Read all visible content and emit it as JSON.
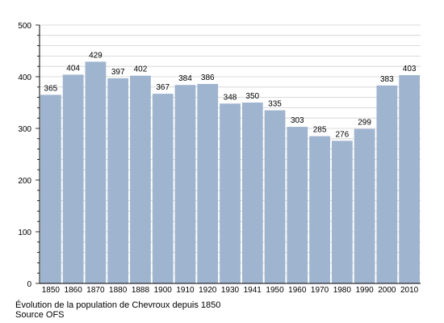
{
  "chart_data": {
    "type": "bar",
    "categories": [
      "1850",
      "1860",
      "1870",
      "1880",
      "1888",
      "1900",
      "1910",
      "1920",
      "1930",
      "1941",
      "1950",
      "1960",
      "1970",
      "1980",
      "1990",
      "2000",
      "2010"
    ],
    "values": [
      365,
      404,
      429,
      397,
      402,
      367,
      384,
      386,
      348,
      350,
      335,
      303,
      285,
      276,
      299,
      383,
      403
    ],
    "data_labels": [
      "365",
      "404",
      "429",
      "397",
      "402",
      "367",
      "384",
      "386",
      "348",
      "350",
      "335",
      "303",
      "285",
      "276",
      "299",
      "383",
      "403"
    ],
    "y_ticks": [
      "0",
      "100",
      "200",
      "300",
      "400",
      "500"
    ],
    "ylim": [
      0,
      500
    ],
    "grid": true,
    "bar_color": "#9fb4cf",
    "grid_color": "#d0d0d0"
  },
  "caption": {
    "line1": "Évolution de la population de Chevroux depuis 1850",
    "line2": "Source OFS"
  }
}
